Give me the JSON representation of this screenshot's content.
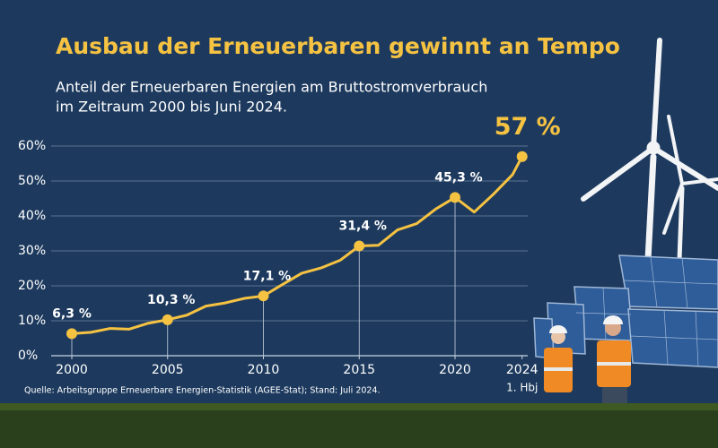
{
  "chart_data": {
    "type": "line",
    "title": "Ausbau der Erneuerbaren gewinnt an Tempo",
    "subtitle": [
      "Anteil der Erneuerbaren Energien am Bruttostromverbrauch",
      "im Zeitraum 2000 bis Juni 2024."
    ],
    "source": "Quelle: Arbeitsgruppe Erneuerbare Energien-Statistik (AGEE-Stat); Stand: Juli 2024.",
    "x_tick_note": "1. Hbj",
    "x": [
      2000,
      2001,
      2002,
      2003,
      2004,
      2005,
      2006,
      2007,
      2008,
      2009,
      2010,
      2011,
      2012,
      2013,
      2014,
      2015,
      2016,
      2017,
      2018,
      2019,
      2020,
      2021,
      2022,
      2023,
      2023.5
    ],
    "values": [
      6.3,
      6.7,
      7.8,
      7.6,
      9.3,
      10.3,
      11.6,
      14.2,
      15.1,
      16.4,
      17.1,
      20.4,
      23.6,
      25.1,
      27.3,
      31.4,
      31.6,
      36.0,
      37.8,
      42.0,
      45.3,
      41.1,
      46.2,
      51.8,
      57
    ],
    "value_labels": [
      "6,3 %",
      null,
      null,
      null,
      null,
      "10,3 %",
      null,
      null,
      null,
      null,
      "17,1 %",
      null,
      null,
      null,
      null,
      "31,4 %",
      null,
      null,
      null,
      null,
      "45,3 %",
      null,
      null,
      null,
      "57 %"
    ],
    "color": "#f5c242",
    "xlim": [
      1999,
      2025
    ],
    "xticks": [
      2000,
      2005,
      2010,
      2015,
      2020,
      {
        "value": 2023.5,
        "label": "2024"
      }
    ],
    "ylim": [
      0,
      60
    ],
    "yticks": [
      {
        "value": 0,
        "label": "0%"
      },
      {
        "value": 10,
        "label": "10%"
      },
      {
        "value": 20,
        "label": "20%"
      },
      {
        "value": 30,
        "label": "30%"
      },
      {
        "value": 40,
        "label": "40%"
      },
      {
        "value": 50,
        "label": "50%"
      },
      {
        "value": 60,
        "label": "60%"
      }
    ],
    "grid": true
  }
}
